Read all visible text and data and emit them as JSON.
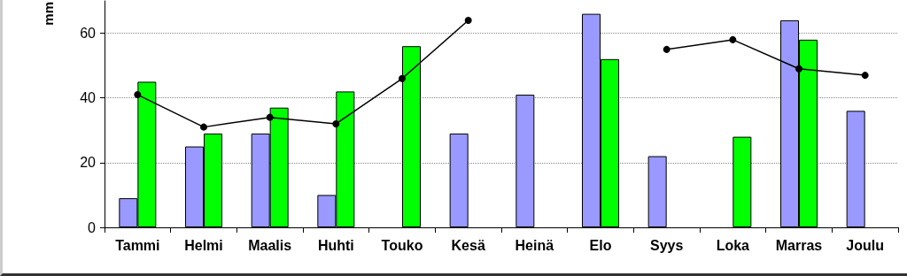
{
  "chart_data": {
    "type": "bar",
    "ylabel": "mm",
    "categories": [
      "Tammi",
      "Helmi",
      "Maalis",
      "Huhti",
      "Touko",
      "Kesä",
      "Heinä",
      "Elo",
      "Syys",
      "Loka",
      "Marras",
      "Joulu"
    ],
    "series": [
      {
        "color": "#9999ff",
        "values": [
          9,
          25,
          29,
          10,
          null,
          29,
          41,
          66,
          22,
          null,
          64,
          36
        ]
      },
      {
        "color": "#00ff00",
        "values": [
          45,
          29,
          37,
          42,
          56,
          null,
          null,
          52,
          null,
          28,
          58,
          null
        ]
      },
      {
        "type": "line",
        "color": "#000000",
        "marker": "circle",
        "values": [
          41,
          31,
          34,
          32,
          46,
          64,
          null,
          null,
          55,
          58,
          49,
          47
        ]
      }
    ],
    "ylim": [
      0,
      70
    ],
    "yticks": [
      0,
      20,
      40,
      60
    ],
    "grid": "y"
  }
}
